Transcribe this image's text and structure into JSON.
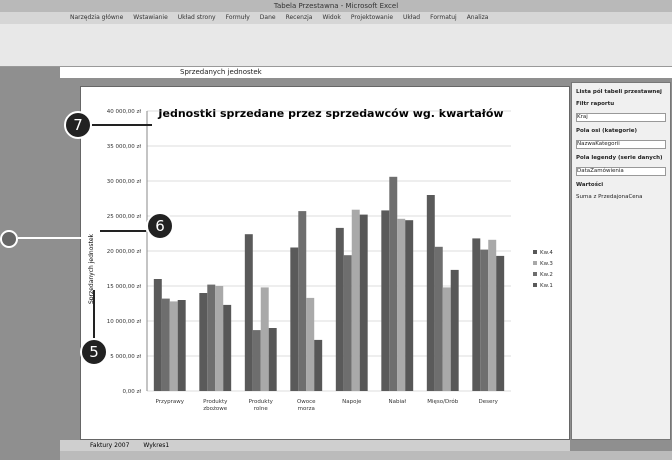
{
  "window_title": "Tabela Przestawna - Microsoft Excel",
  "tabs": [
    "Narzędzia główne",
    "Wstawianie",
    "Układ strony",
    "Formuły",
    "Dane",
    "Recenzja",
    "Widok",
    "Projektowanie",
    "Układ",
    "Formatuj",
    "Analiza"
  ],
  "formula": "Sprzedanych jednostek",
  "panel": {
    "title": "Lista pól tabeli przestawnej",
    "filter": "Filtr raportu",
    "filter_value": "Kraj",
    "axis": "Pola osi (kategorie)",
    "axis_value": "NazwaKategorii",
    "legend": "Pola legendy (serie danych)",
    "legend_value": "DataZamówienia",
    "values": "Wartości",
    "values_value": "Suma z PrzedajonaCena"
  },
  "sheets": [
    "Faktury 2007",
    "Wykres1"
  ],
  "callouts": [
    "7",
    "6",
    "5"
  ],
  "chart_data": {
    "type": "bar",
    "title": "Jednostki sprzedane przez sprzedawców wg. kwartałów",
    "ylabel": "Sprzedanych jednostek",
    "categories": [
      "Przyprawy",
      "Produkty zbożowe",
      "Produkty rolne",
      "Owoce morza",
      "Napoje",
      "Nabiał",
      "Mięso/Drób",
      "Desery"
    ],
    "series": [
      {
        "name": "Kw.1",
        "color": "#5a5a5a",
        "values": [
          16000,
          14000,
          22400,
          20500,
          23300,
          25800,
          28000,
          21800
        ]
      },
      {
        "name": "Kw.2",
        "color": "#6e6e6e",
        "values": [
          13200,
          15200,
          8700,
          25700,
          19400,
          30600,
          20600,
          20200
        ]
      },
      {
        "name": "Kw.3",
        "color": "#a9a9a9",
        "values": [
          12800,
          15000,
          14800,
          13300,
          25900,
          24600,
          14800,
          21600
        ]
      },
      {
        "name": "Kw.4",
        "color": "#575757",
        "values": [
          13000,
          12300,
          9000,
          7300,
          25200,
          24400,
          17300,
          19300
        ]
      }
    ],
    "ylim": [
      0,
      40000
    ],
    "yticks": [
      {
        "value": 0,
        "label": "0,00 zł"
      },
      {
        "value": 5000,
        "label": "5 000,00 zł"
      },
      {
        "value": 10000,
        "label": "10 000,00 zł"
      },
      {
        "value": 15000,
        "label": "15 000,00 zł"
      },
      {
        "value": 20000,
        "label": "20 000,00 zł"
      },
      {
        "value": 25000,
        "label": "25 000,00 zł"
      },
      {
        "value": 30000,
        "label": "30 000,00 zł"
      },
      {
        "value": 35000,
        "label": "35 000,00 zł"
      },
      {
        "value": 40000,
        "label": "40 000,00 zł"
      }
    ],
    "grid": true,
    "legend": "right"
  }
}
